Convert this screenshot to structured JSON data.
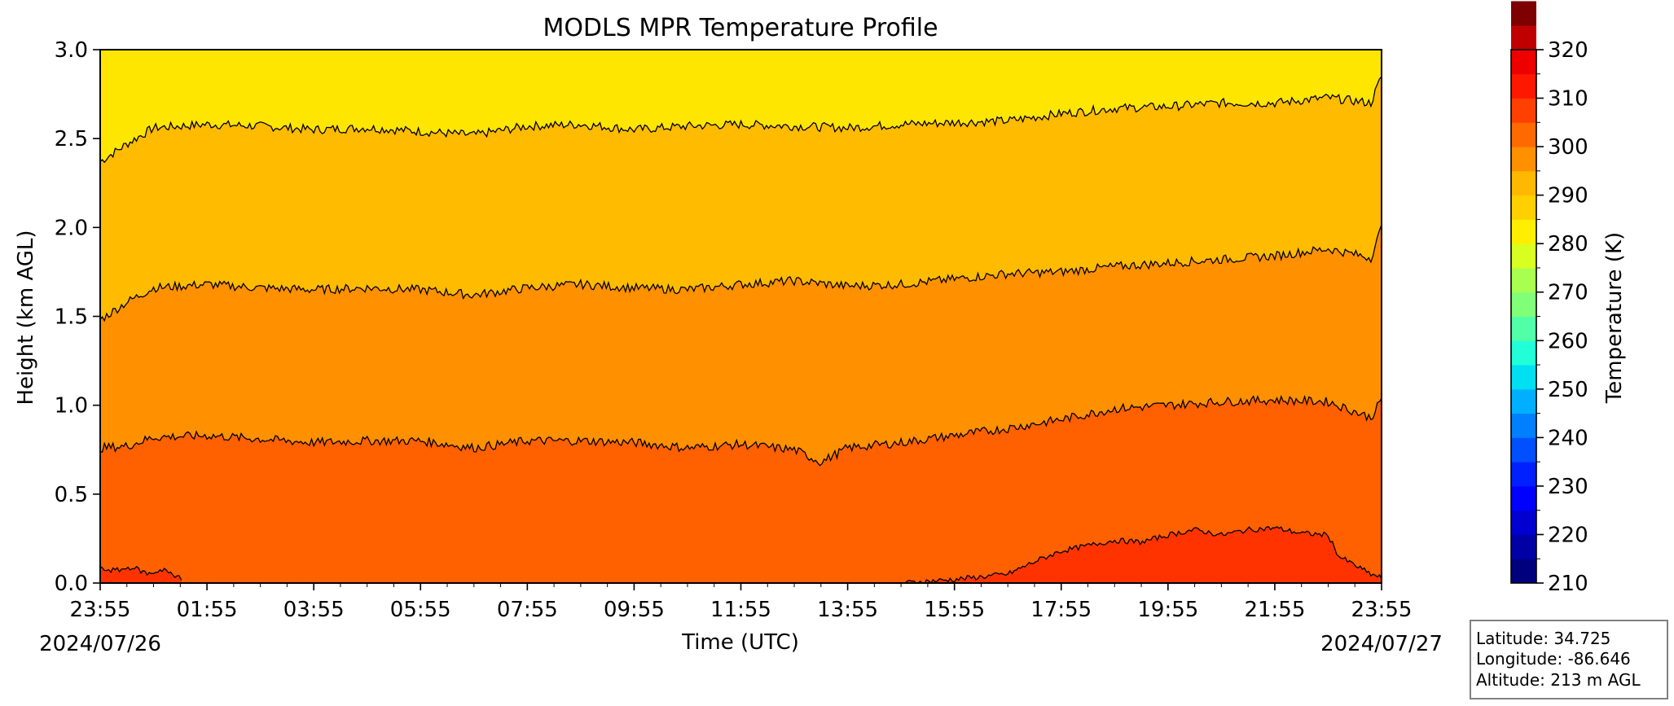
{
  "chart_data": {
    "type": "heatmap",
    "title": "MODLS MPR Temperature Profile",
    "xlabel": "Time (UTC)",
    "ylabel": "Height (km AGL)",
    "x_tick_labels": [
      "23:55",
      "01:55",
      "03:55",
      "05:55",
      "07:55",
      "09:55",
      "11:55",
      "13:55",
      "15:55",
      "17:55",
      "19:55",
      "21:55",
      "23:55"
    ],
    "x_range_hours": [
      0,
      24
    ],
    "start_date": "2024/07/26",
    "end_date": "2024/07/27",
    "y_ticks": [
      "0.0",
      "0.5",
      "1.0",
      "1.5",
      "2.0",
      "2.5",
      "3.0"
    ],
    "ylim": [
      0,
      3.0
    ],
    "colorbar": {
      "label": "Temperature (K)",
      "range": [
        210,
        320
      ],
      "step": 5,
      "ticks": [
        "210",
        "220",
        "230",
        "240",
        "250",
        "260",
        "270",
        "280",
        "290",
        "300",
        "310",
        "320"
      ],
      "colors": [
        "#00007f",
        "#0000a5",
        "#0000d0",
        "#0000ff",
        "#0020ff",
        "#0050ff",
        "#0080ff",
        "#00b0ff",
        "#00e0f0",
        "#20ffd8",
        "#50ffa8",
        "#80ff78",
        "#a8ff50",
        "#d8ff20",
        "#ffee00",
        "#ffd000",
        "#ffb800",
        "#ff9000",
        "#ff6a00",
        "#ff4000",
        "#ff1800",
        "#ee0000",
        "#c00000",
        "#7f0000"
      ]
    },
    "fill_colors": {
      "above_2.5": "#ffe600",
      "band_2.5": "#ffbb00",
      "band_1.5": "#ff9000",
      "band_0.8": "#ff6000",
      "warm_core": "#ff3300"
    },
    "contours_km": [
      {
        "name": "upper",
        "x": [
          0,
          0.5,
          1,
          2,
          3,
          4,
          5,
          6,
          7,
          8,
          9,
          10,
          11,
          12,
          13,
          14,
          15,
          16,
          17,
          18,
          19,
          20,
          21,
          22,
          23,
          23.8,
          24
        ],
        "y": [
          2.37,
          2.47,
          2.56,
          2.58,
          2.57,
          2.55,
          2.56,
          2.54,
          2.52,
          2.57,
          2.58,
          2.55,
          2.57,
          2.58,
          2.57,
          2.56,
          2.58,
          2.59,
          2.6,
          2.64,
          2.67,
          2.68,
          2.7,
          2.7,
          2.73,
          2.7,
          2.85
        ]
      },
      {
        "name": "middle",
        "x": [
          0,
          0.5,
          1,
          2,
          3,
          4,
          5,
          6,
          7,
          8,
          9,
          10,
          11,
          12,
          13,
          14,
          15,
          16,
          17,
          18,
          19,
          20,
          21,
          22,
          23,
          23.8,
          24
        ],
        "y": [
          1.48,
          1.58,
          1.66,
          1.68,
          1.66,
          1.65,
          1.66,
          1.65,
          1.62,
          1.66,
          1.68,
          1.66,
          1.65,
          1.68,
          1.7,
          1.67,
          1.68,
          1.71,
          1.74,
          1.75,
          1.78,
          1.8,
          1.82,
          1.84,
          1.88,
          1.83,
          2.0
        ]
      },
      {
        "name": "lower",
        "x": [
          0,
          0.5,
          1,
          2,
          3,
          4,
          5,
          6,
          7,
          8,
          9,
          10,
          11,
          12,
          13,
          13.5,
          14,
          15,
          16,
          17,
          18,
          19,
          20,
          21,
          22,
          23,
          23.8,
          24
        ],
        "y": [
          0.76,
          0.77,
          0.82,
          0.83,
          0.81,
          0.79,
          0.8,
          0.8,
          0.76,
          0.8,
          0.8,
          0.79,
          0.76,
          0.78,
          0.75,
          0.68,
          0.76,
          0.79,
          0.83,
          0.87,
          0.92,
          0.98,
          1.0,
          1.02,
          1.03,
          1.02,
          0.93,
          1.03
        ]
      },
      {
        "name": "warm-core",
        "x": [
          15,
          16,
          17,
          17.5,
          18,
          18.5,
          19,
          19.5,
          20,
          20.5,
          21,
          21.5,
          22,
          22.5,
          23,
          23.2,
          23.5,
          23.8,
          24
        ],
        "y": [
          0.0,
          0.02,
          0.05,
          0.12,
          0.18,
          0.21,
          0.24,
          0.23,
          0.27,
          0.3,
          0.27,
          0.3,
          0.31,
          0.28,
          0.27,
          0.15,
          0.1,
          0.05,
          0.03
        ]
      },
      {
        "name": "early-warm",
        "x": [
          0,
          0.3,
          0.6,
          0.9,
          1.2,
          1.4,
          1.5,
          1.55
        ],
        "y": [
          0.08,
          0.07,
          0.09,
          0.05,
          0.08,
          0.03,
          0.05,
          0.0
        ]
      }
    ]
  },
  "station": {
    "latitude": "Latitude: 34.725",
    "longitude": "Longitude: -86.646",
    "altitude": "Altitude: 213 m AGL"
  }
}
